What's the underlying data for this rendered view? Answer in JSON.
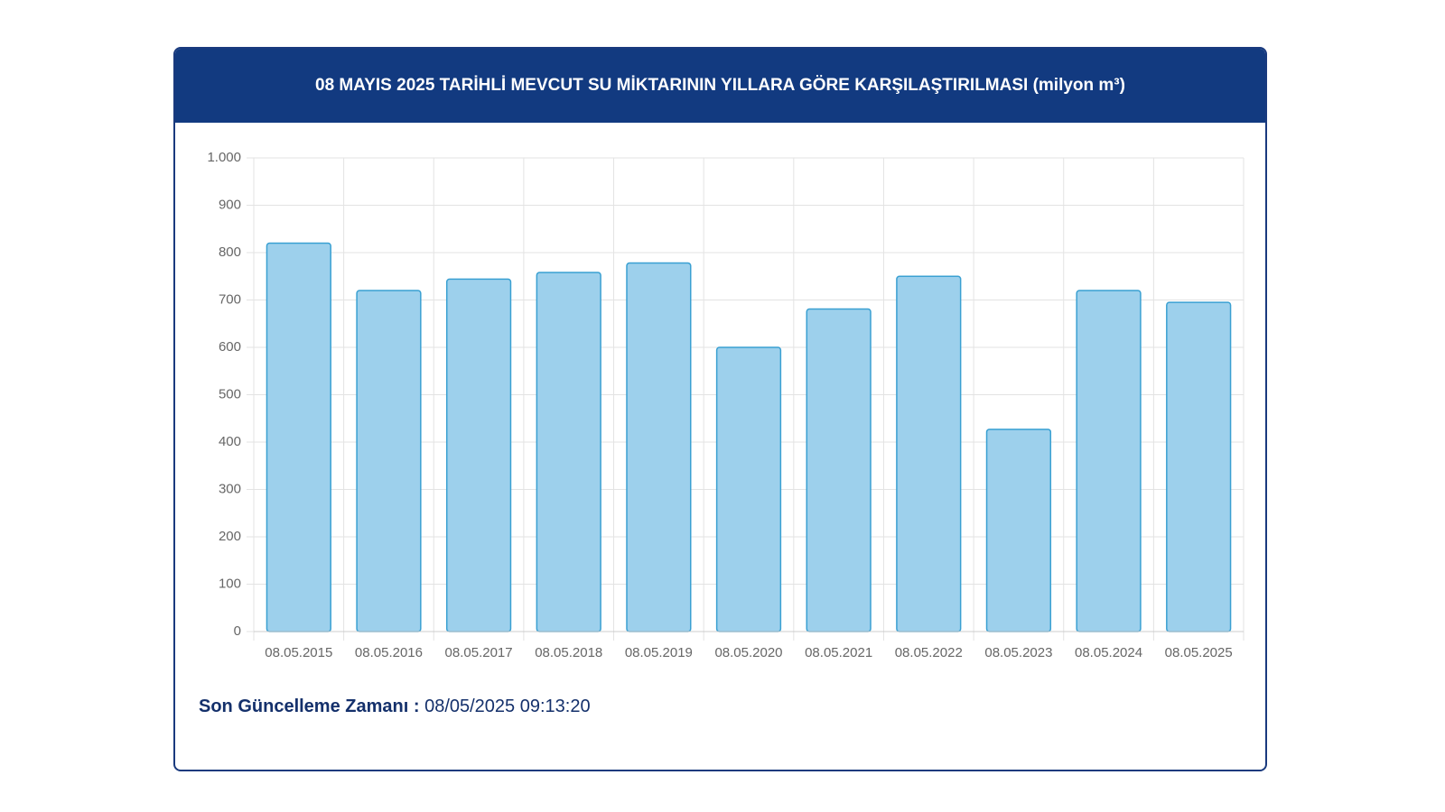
{
  "chart_data": {
    "type": "bar",
    "title": "08 MAYIS 2025 TARİHLİ MEVCUT SU MİKTARININ YILLARA GÖRE KARŞILAŞTIRILMASI (milyon m³)",
    "categories": [
      "08.05.2015",
      "08.05.2016",
      "08.05.2017",
      "08.05.2018",
      "08.05.2019",
      "08.05.2020",
      "08.05.2021",
      "08.05.2022",
      "08.05.2023",
      "08.05.2024",
      "08.05.2025"
    ],
    "values": [
      820,
      720,
      744,
      758,
      778,
      600,
      681,
      750,
      427,
      720,
      695
    ],
    "color": "#9dd0ec",
    "ylim": [
      0,
      1000
    ],
    "yticks": [
      0,
      100,
      200,
      300,
      400,
      500,
      600,
      700,
      800,
      900,
      {
        "value": 1000,
        "label": "1.000"
      }
    ],
    "grid": true
  },
  "footer": {
    "label": "Son Güncelleme Zamanı :",
    "value": "08/05/2025 09:13:20"
  }
}
